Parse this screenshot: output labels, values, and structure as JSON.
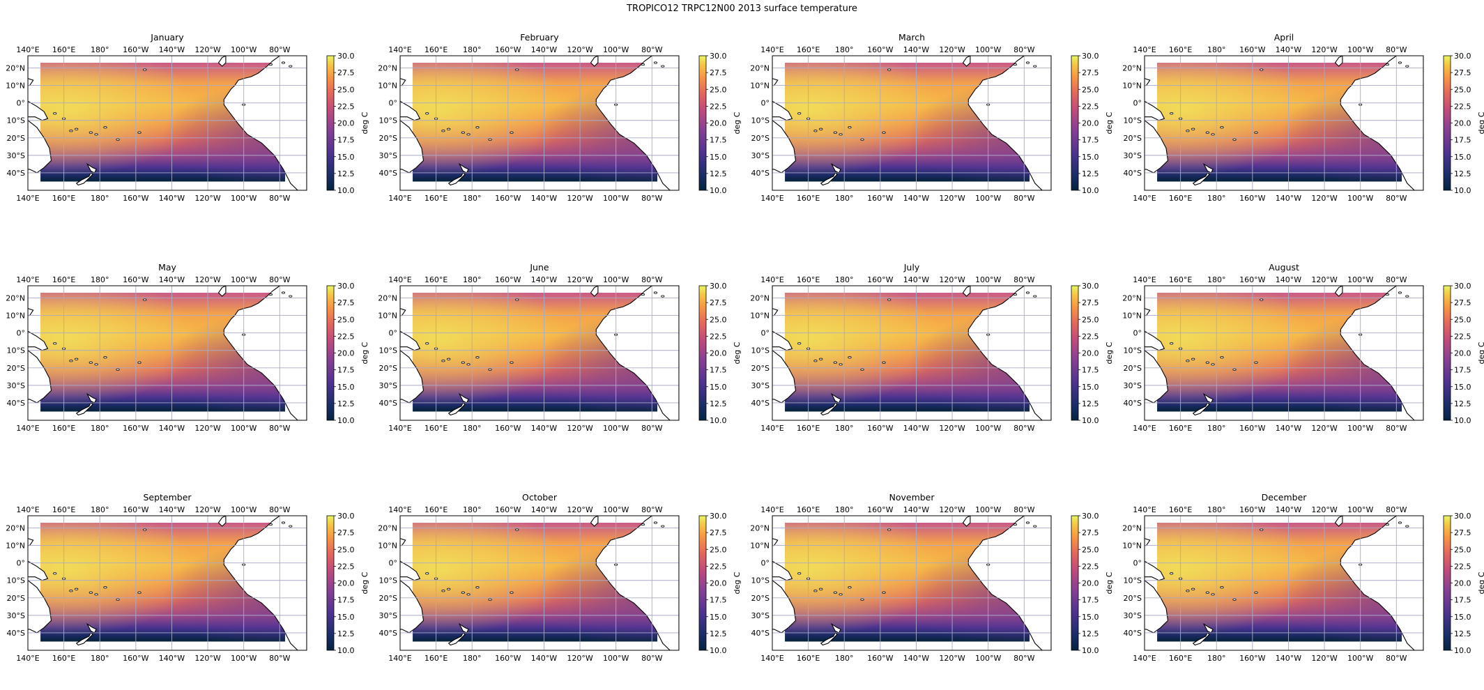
{
  "figure": {
    "title": "TROPICO12 TRPC12N00 2013 surface temperature"
  },
  "colorbar": {
    "label": "deg C",
    "colormap": "thermal",
    "min": 10.0,
    "max": 30.0,
    "ticks": [
      "10.0",
      "12.5",
      "15.0",
      "17.5",
      "20.0",
      "22.5",
      "25.0",
      "27.5",
      "30.0"
    ]
  },
  "map": {
    "longitude_labels": [
      "140°E",
      "160°E",
      "180°",
      "160°W",
      "140°W",
      "120°W",
      "100°W",
      "80°W"
    ],
    "latitude_labels": [
      "20°N",
      "10°N",
      "0°",
      "10°S",
      "20°S",
      "30°S",
      "40°S"
    ],
    "extent": {
      "lon_min": 140,
      "lon_max": 295,
      "lat_min": -50,
      "lat_max": 27
    },
    "data_extent": {
      "lon_min": 147,
      "lon_max": 283,
      "lat_min": -45,
      "lat_max": 23
    },
    "gridlines": true,
    "gridline_color": "#a9a9c8",
    "coastlines": true
  },
  "panels": [
    {
      "month": "January",
      "row": 0,
      "col": 0
    },
    {
      "month": "February",
      "row": 0,
      "col": 1
    },
    {
      "month": "March",
      "row": 0,
      "col": 2
    },
    {
      "month": "April",
      "row": 0,
      "col": 3
    },
    {
      "month": "May",
      "row": 1,
      "col": 0
    },
    {
      "month": "June",
      "row": 1,
      "col": 1
    },
    {
      "month": "July",
      "row": 1,
      "col": 2
    },
    {
      "month": "August",
      "row": 1,
      "col": 3
    },
    {
      "month": "September",
      "row": 2,
      "col": 0
    },
    {
      "month": "October",
      "row": 2,
      "col": 1
    },
    {
      "month": "November",
      "row": 2,
      "col": 2
    },
    {
      "month": "December",
      "row": 2,
      "col": 3
    }
  ],
  "chart_data": {
    "type": "heatmap",
    "title": "TROPICO12 TRPC12N00 2013 surface temperature",
    "variable": "surface temperature",
    "units": "deg C",
    "vmin": 10.0,
    "vmax": 30.0,
    "panels": [
      "January",
      "February",
      "March",
      "April",
      "May",
      "June",
      "July",
      "August",
      "September",
      "October",
      "November",
      "December"
    ],
    "grid": true
  }
}
